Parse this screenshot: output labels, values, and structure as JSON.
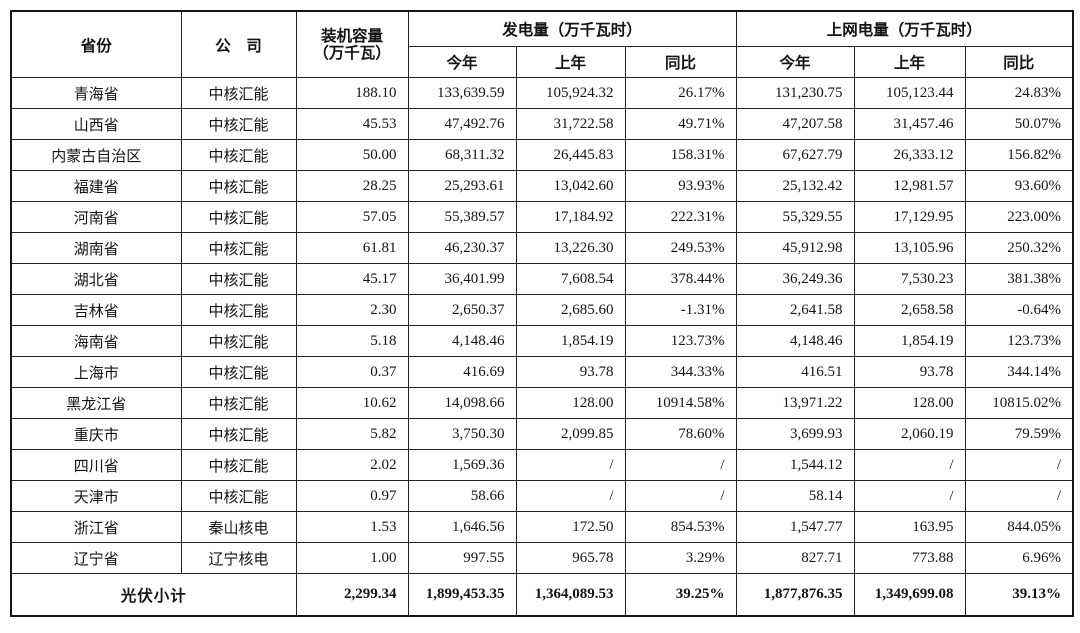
{
  "table": {
    "headers": {
      "province": "省份",
      "company": "公　司",
      "capacity_line1": "装机容量",
      "capacity_line2": "（万千瓦）",
      "generation_group": "发电量（万千瓦时）",
      "ongrid_group": "上网电量（万千瓦时）",
      "this_year": "今年",
      "last_year": "上年",
      "yoy": "同比"
    },
    "rows": [
      {
        "province": "青海省",
        "company": "中核汇能",
        "capacity": "188.10",
        "gen_this": "133,639.59",
        "gen_last": "105,924.32",
        "gen_yoy": "26.17%",
        "grid_this": "131,230.75",
        "grid_last": "105,123.44",
        "grid_yoy": "24.83%"
      },
      {
        "province": "山西省",
        "company": "中核汇能",
        "capacity": "45.53",
        "gen_this": "47,492.76",
        "gen_last": "31,722.58",
        "gen_yoy": "49.71%",
        "grid_this": "47,207.58",
        "grid_last": "31,457.46",
        "grid_yoy": "50.07%"
      },
      {
        "province": "内蒙古自治区",
        "company": "中核汇能",
        "capacity": "50.00",
        "gen_this": "68,311.32",
        "gen_last": "26,445.83",
        "gen_yoy": "158.31%",
        "grid_this": "67,627.79",
        "grid_last": "26,333.12",
        "grid_yoy": "156.82%"
      },
      {
        "province": "福建省",
        "company": "中核汇能",
        "capacity": "28.25",
        "gen_this": "25,293.61",
        "gen_last": "13,042.60",
        "gen_yoy": "93.93%",
        "grid_this": "25,132.42",
        "grid_last": "12,981.57",
        "grid_yoy": "93.60%"
      },
      {
        "province": "河南省",
        "company": "中核汇能",
        "capacity": "57.05",
        "gen_this": "55,389.57",
        "gen_last": "17,184.92",
        "gen_yoy": "222.31%",
        "grid_this": "55,329.55",
        "grid_last": "17,129.95",
        "grid_yoy": "223.00%"
      },
      {
        "province": "湖南省",
        "company": "中核汇能",
        "capacity": "61.81",
        "gen_this": "46,230.37",
        "gen_last": "13,226.30",
        "gen_yoy": "249.53%",
        "grid_this": "45,912.98",
        "grid_last": "13,105.96",
        "grid_yoy": "250.32%"
      },
      {
        "province": "湖北省",
        "company": "中核汇能",
        "capacity": "45.17",
        "gen_this": "36,401.99",
        "gen_last": "7,608.54",
        "gen_yoy": "378.44%",
        "grid_this": "36,249.36",
        "grid_last": "7,530.23",
        "grid_yoy": "381.38%"
      },
      {
        "province": "吉林省",
        "company": "中核汇能",
        "capacity": "2.30",
        "gen_this": "2,650.37",
        "gen_last": "2,685.60",
        "gen_yoy": "-1.31%",
        "grid_this": "2,641.58",
        "grid_last": "2,658.58",
        "grid_yoy": "-0.64%"
      },
      {
        "province": "海南省",
        "company": "中核汇能",
        "capacity": "5.18",
        "gen_this": "4,148.46",
        "gen_last": "1,854.19",
        "gen_yoy": "123.73%",
        "grid_this": "4,148.46",
        "grid_last": "1,854.19",
        "grid_yoy": "123.73%"
      },
      {
        "province": "上海市",
        "company": "中核汇能",
        "capacity": "0.37",
        "gen_this": "416.69",
        "gen_last": "93.78",
        "gen_yoy": "344.33%",
        "grid_this": "416.51",
        "grid_last": "93.78",
        "grid_yoy": "344.14%"
      },
      {
        "province": "黑龙江省",
        "company": "中核汇能",
        "capacity": "10.62",
        "gen_this": "14,098.66",
        "gen_last": "128.00",
        "gen_yoy": "10914.58%",
        "grid_this": "13,971.22",
        "grid_last": "128.00",
        "grid_yoy": "10815.02%"
      },
      {
        "province": "重庆市",
        "company": "中核汇能",
        "capacity": "5.82",
        "gen_this": "3,750.30",
        "gen_last": "2,099.85",
        "gen_yoy": "78.60%",
        "grid_this": "3,699.93",
        "grid_last": "2,060.19",
        "grid_yoy": "79.59%"
      },
      {
        "province": "四川省",
        "company": "中核汇能",
        "capacity": "2.02",
        "gen_this": "1,569.36",
        "gen_last": "/",
        "gen_yoy": "/",
        "grid_this": "1,544.12",
        "grid_last": "/",
        "grid_yoy": "/"
      },
      {
        "province": "天津市",
        "company": "中核汇能",
        "capacity": "0.97",
        "gen_this": "58.66",
        "gen_last": "/",
        "gen_yoy": "/",
        "grid_this": "58.14",
        "grid_last": "/",
        "grid_yoy": "/"
      },
      {
        "province": "浙江省",
        "company": "秦山核电",
        "capacity": "1.53",
        "gen_this": "1,646.56",
        "gen_last": "172.50",
        "gen_yoy": "854.53%",
        "grid_this": "1,547.77",
        "grid_last": "163.95",
        "grid_yoy": "844.05%"
      },
      {
        "province": "辽宁省",
        "company": "辽宁核电",
        "capacity": "1.00",
        "gen_this": "997.55",
        "gen_last": "965.78",
        "gen_yoy": "3.29%",
        "grid_this": "827.71",
        "grid_last": "773.88",
        "grid_yoy": "6.96%"
      }
    ],
    "summary": {
      "label": "光伏小计",
      "capacity": "2,299.34",
      "gen_this": "1,899,453.35",
      "gen_last": "1,364,089.53",
      "gen_yoy": "39.25%",
      "grid_this": "1,877,876.35",
      "grid_last": "1,349,699.08",
      "grid_yoy": "39.13%"
    }
  }
}
